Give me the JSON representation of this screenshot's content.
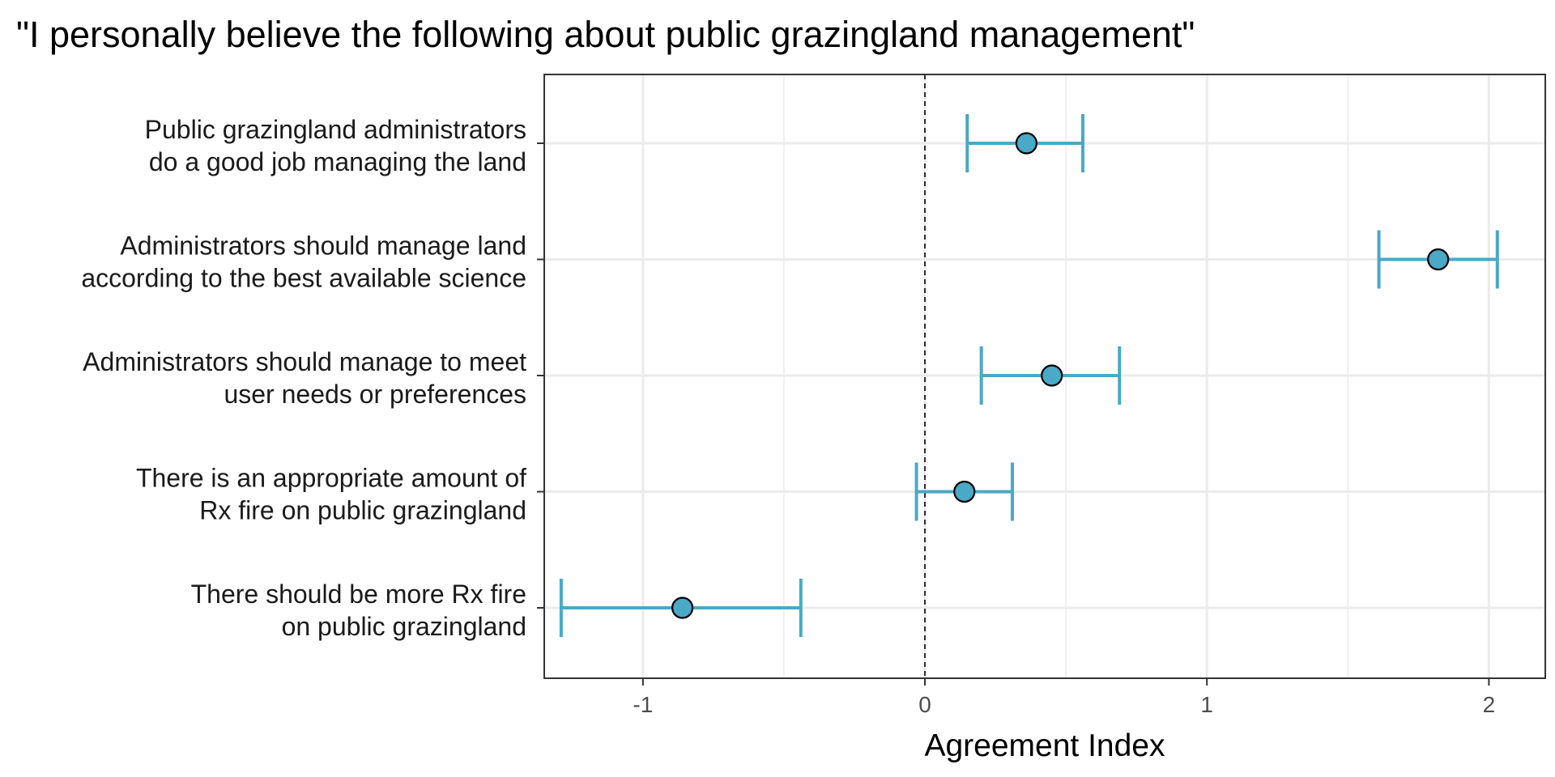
{
  "chart_data": {
    "type": "scatter",
    "title": "\"I personally believe the following about public grazingland management\"",
    "xlabel": "Agreement Index",
    "ylabel": "",
    "xlim": [
      -1.35,
      2.2
    ],
    "xticks": [
      -1,
      0,
      1,
      2
    ],
    "xtick_labels": [
      "-1",
      "0",
      "1",
      "2"
    ],
    "reference_line": 0,
    "grid": true,
    "point_color": "#49a9c6",
    "categories": [
      [
        "Public grazingland administrators",
        "do a good job managing the land"
      ],
      [
        "Administrators should manage land",
        "according to the best available science"
      ],
      [
        "Administrators should manage to meet",
        "user needs or preferences"
      ],
      [
        "There is an appropriate amount of",
        "Rx fire on public grazingland"
      ],
      [
        "There should be more Rx fire",
        "on public grazingland"
      ]
    ],
    "points": [
      {
        "estimate": 0.36,
        "lower": 0.15,
        "upper": 0.56
      },
      {
        "estimate": 1.82,
        "lower": 1.61,
        "upper": 2.03
      },
      {
        "estimate": 0.45,
        "lower": 0.2,
        "upper": 0.69
      },
      {
        "estimate": 0.14,
        "lower": -0.03,
        "upper": 0.31
      },
      {
        "estimate": -0.86,
        "lower": -1.29,
        "upper": -0.44
      }
    ]
  }
}
